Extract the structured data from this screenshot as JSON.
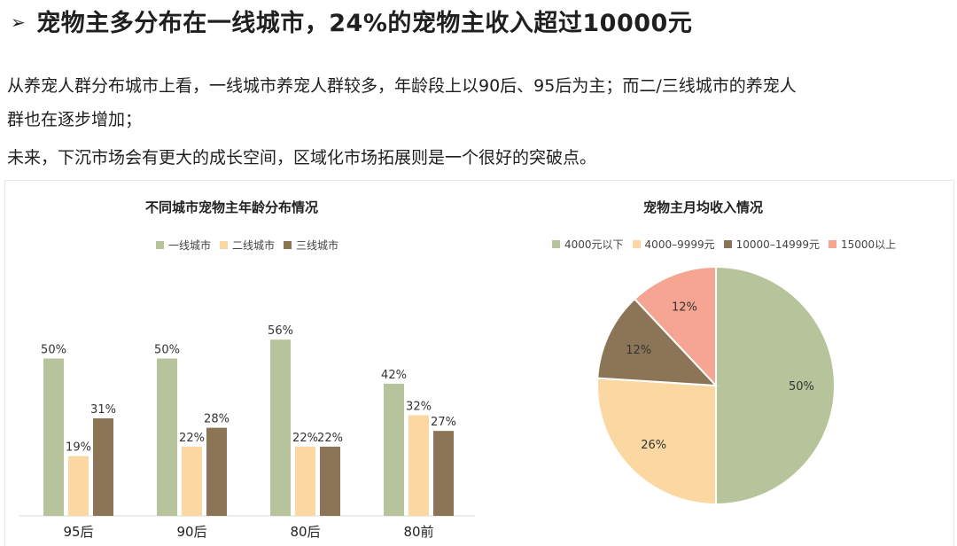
{
  "heading": {
    "arrow": "➢",
    "text": "宠物主多分布在一线城市，24%的宠物主收入超过10000元"
  },
  "paragraphs": [
    "从养宠人群分布城市上看，一线城市养宠人群较多，年龄段上以90后、95后为主；而二/三线城市的养宠人",
    "群也在逐步增加；",
    "未来，下沉市场会有更大的成长空间，区域化市场拓展则是一个很好的突破点。"
  ],
  "chart_data": [
    {
      "type": "bar",
      "title": "不同城市宠物主年龄分布情况",
      "categories": [
        "95后",
        "90后",
        "80后",
        "80前"
      ],
      "series": [
        {
          "name": "一线城市",
          "values": [
            50,
            50,
            56,
            42
          ],
          "labels": [
            "50%",
            "50%",
            "56%",
            "42%"
          ],
          "color": "#b6c39b"
        },
        {
          "name": "二线城市",
          "values": [
            19,
            22,
            22,
            32
          ],
          "labels": [
            "19%",
            "22%",
            "22%",
            "32%"
          ],
          "color": "#fbd8a2"
        },
        {
          "name": "三线城市",
          "values": [
            31,
            28,
            22,
            27
          ],
          "labels": [
            "31%",
            "28%",
            "22%",
            "27%"
          ],
          "color": "#8c7556"
        }
      ],
      "ylim": [
        0,
        70
      ],
      "grid": false,
      "legend": "top"
    },
    {
      "type": "pie",
      "title": "宠物主月均收入情况",
      "slices": [
        {
          "name": "4000元以下",
          "value": 50,
          "label": "50%",
          "color": "#b6c39b"
        },
        {
          "name": "4000–9999元",
          "value": 26,
          "label": "26%",
          "color": "#fbd8a2"
        },
        {
          "name": "10000–14999元",
          "value": 12,
          "label": "12%",
          "color": "#8c7556"
        },
        {
          "name": "15000以上",
          "value": 12,
          "label": "12%",
          "color": "#f5a592"
        }
      ],
      "legend": "top"
    }
  ]
}
